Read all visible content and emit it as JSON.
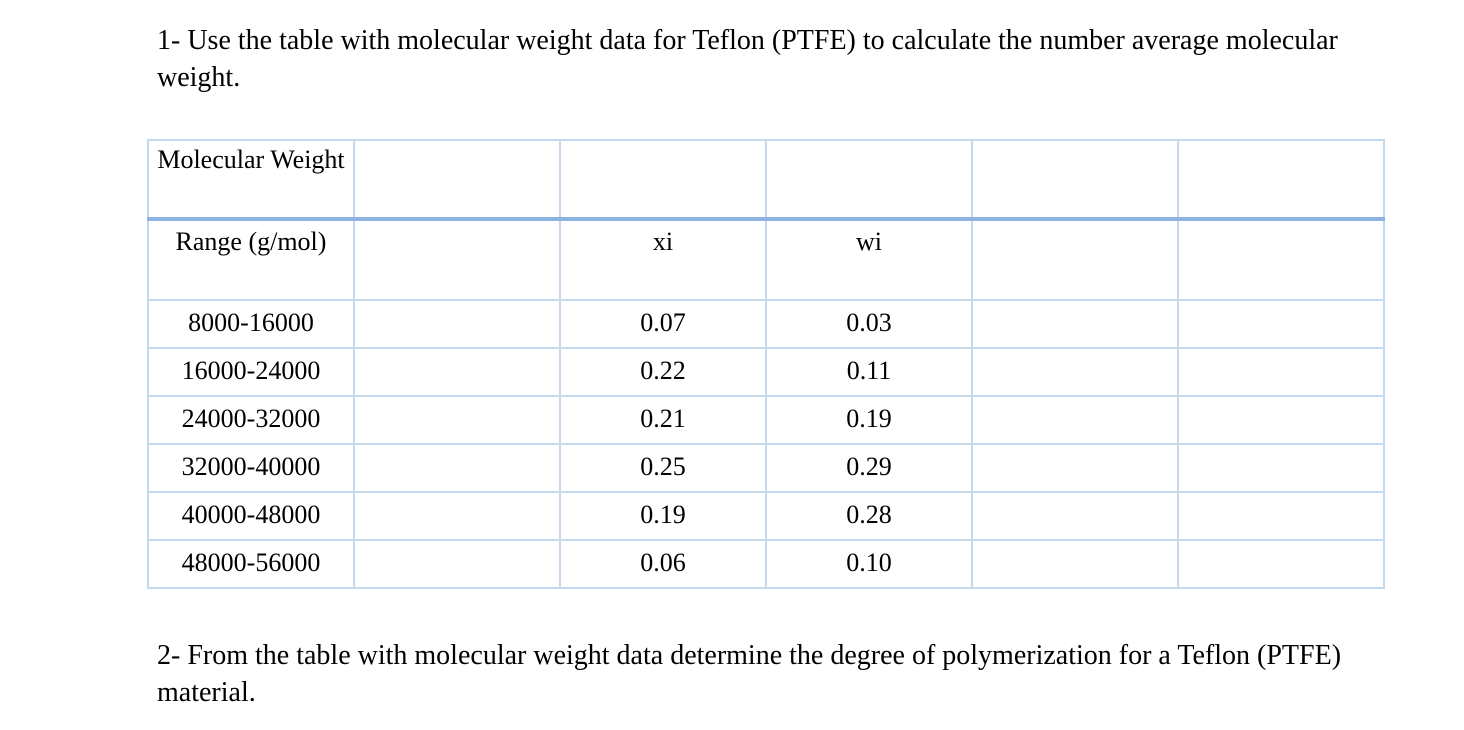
{
  "question_1": "1- Use the table with molecular weight data for Teflon (PTFE) to calculate the number average molecular weight.",
  "table": {
    "header_1": "Molecular Weight",
    "header_2": [
      "Range (g/mol)",
      "xi",
      "wi"
    ],
    "rows": [
      [
        "8000-16000",
        "0.07",
        "0.03"
      ],
      [
        "16000-24000",
        "0.22",
        "0.11"
      ],
      [
        "24000-32000",
        "0.21",
        "0.19"
      ],
      [
        "32000-40000",
        "0.25",
        "0.29"
      ],
      [
        "40000-48000",
        "0.19",
        "0.28"
      ],
      [
        "48000-56000",
        "0.06",
        "0.10"
      ]
    ]
  },
  "question_2": "2- From the table with molecular weight data determine the degree of polymerization for a Teflon (PTFE) material."
}
